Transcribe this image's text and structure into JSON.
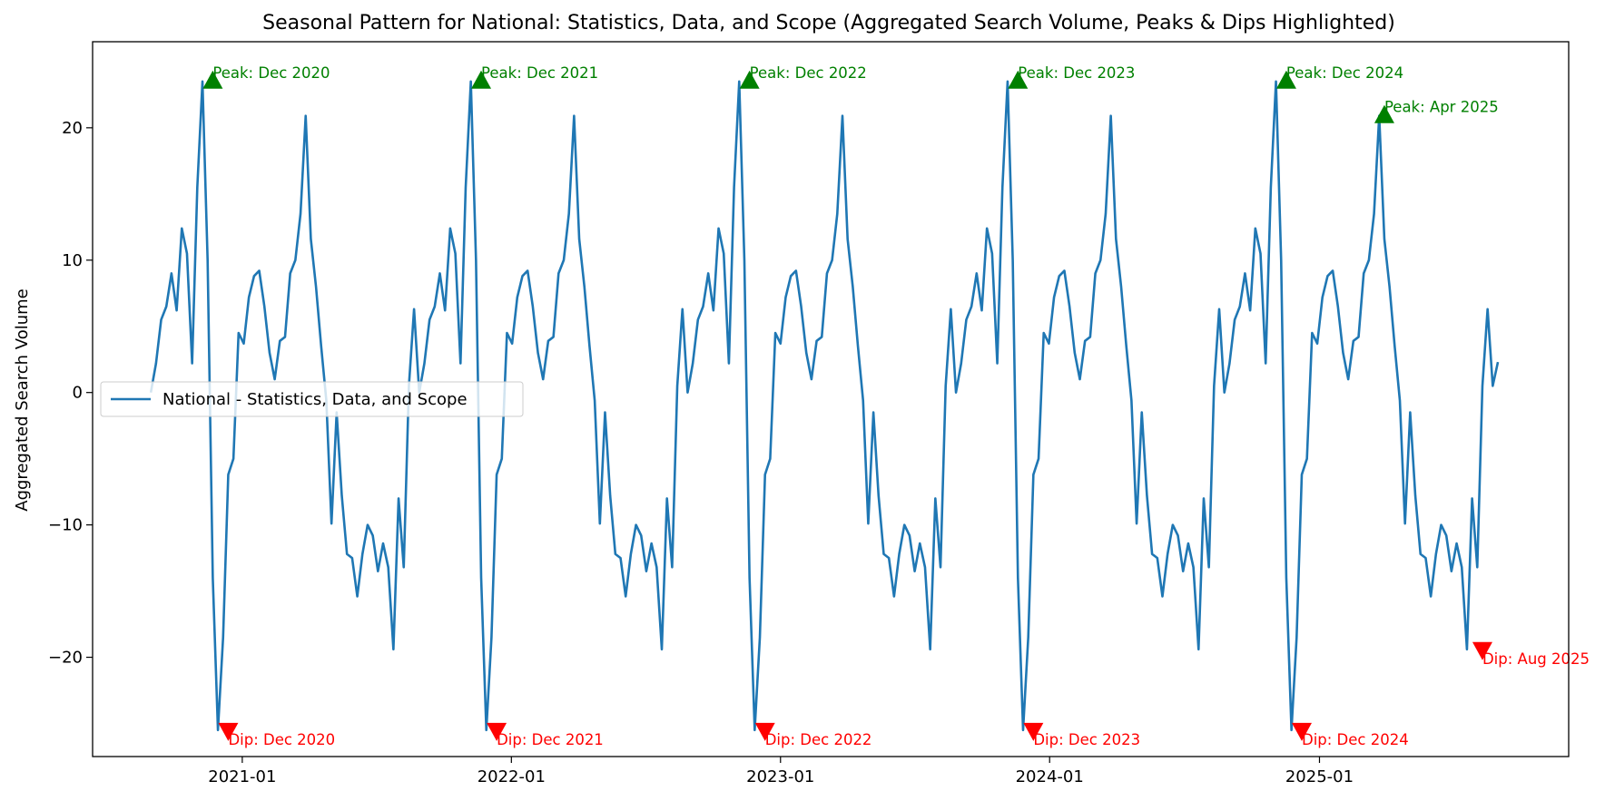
{
  "chart_data": {
    "type": "line",
    "title": "Seasonal Pattern for National: Statistics, Data, and Scope (Aggregated Search Volume, Peaks & Dips Highlighted)",
    "xlabel": "",
    "ylabel": "Aggregated Search Volume",
    "xlim": [
      "2020-06-12",
      "2025-12-05"
    ],
    "ylim": [
      -27.5,
      26.5
    ],
    "x_ticks": [
      "2021-01-01",
      "2022-01-01",
      "2023-01-01",
      "2024-01-01",
      "2025-01-01"
    ],
    "x_tick_labels": [
      "2021-01",
      "2022-01",
      "2023-01",
      "2024-01",
      "2025-01"
    ],
    "y_ticks": [
      -20,
      -10,
      0,
      10,
      20
    ],
    "y_tick_labels": [
      "−20",
      "−10",
      "0",
      "10",
      "20"
    ],
    "grid": false,
    "legend_position": "center-left",
    "colors": {
      "line": "#1f77b4",
      "peak": "#008000",
      "dip": "#ff0000"
    },
    "series": [
      {
        "name": "National - Statistics, Data, and Scope",
        "start_date": "2020-08-30",
        "step_days": 7,
        "cycle": [
          0.0,
          2.2,
          5.5,
          6.5,
          9.0,
          6.2,
          12.4,
          10.5,
          2.2,
          15.5,
          23.5,
          10.0,
          -14.0,
          -25.5,
          -18.5,
          -6.2,
          -5.0,
          4.5,
          3.7,
          7.2,
          8.8,
          9.2,
          6.5,
          3.0,
          1.0,
          3.9,
          4.2,
          9.0,
          10.0,
          13.5,
          20.9,
          11.6,
          8.0,
          3.5,
          -0.6,
          -9.9,
          -1.5,
          -7.8,
          -12.2,
          -12.5,
          -15.4,
          -12.2,
          -10.0,
          -10.8,
          -13.5,
          -11.4,
          -13.2,
          -19.4,
          -8.0,
          -13.2,
          0.5,
          6.3
        ],
        "cycles": 5,
        "tail": [
          0.5,
          2.3
        ]
      }
    ],
    "annotations": [
      {
        "kind": "peak",
        "text": "Peak: Dec 2020",
        "date": "2020-11-22",
        "value": 23.5
      },
      {
        "kind": "peak",
        "text": "Peak: Dec 2021",
        "date": "2021-11-21",
        "value": 23.5
      },
      {
        "kind": "peak",
        "text": "Peak: Dec 2022",
        "date": "2022-11-20",
        "value": 23.5
      },
      {
        "kind": "peak",
        "text": "Peak: Dec 2023",
        "date": "2023-11-19",
        "value": 23.5
      },
      {
        "kind": "peak",
        "text": "Peak: Dec 2024",
        "date": "2024-11-17",
        "value": 23.5
      },
      {
        "kind": "peak",
        "text": "Peak: Apr 2025",
        "date": "2025-03-30",
        "value": 20.9
      },
      {
        "kind": "dip",
        "text": "Dip: Dec 2020",
        "date": "2020-12-13",
        "value": -25.5
      },
      {
        "kind": "dip",
        "text": "Dip: Dec 2021",
        "date": "2021-12-12",
        "value": -25.5
      },
      {
        "kind": "dip",
        "text": "Dip: Dec 2022",
        "date": "2022-12-11",
        "value": -25.5
      },
      {
        "kind": "dip",
        "text": "Dip: Dec 2023",
        "date": "2023-12-10",
        "value": -25.5
      },
      {
        "kind": "dip",
        "text": "Dip: Dec 2024",
        "date": "2024-12-08",
        "value": -25.5
      },
      {
        "kind": "dip",
        "text": "Dip: Aug 2025",
        "date": "2025-08-10",
        "value": -19.4
      }
    ]
  }
}
